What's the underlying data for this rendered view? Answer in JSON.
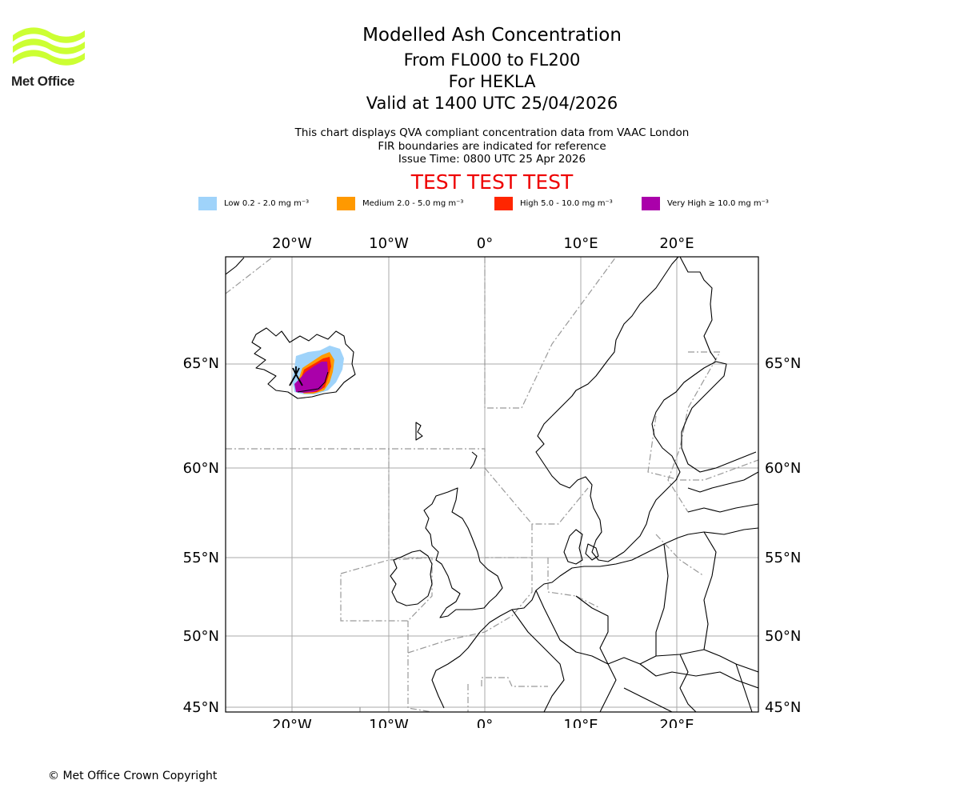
{
  "logo": {
    "name": "Met Office",
    "color": "#ccff33"
  },
  "title": {
    "main": "Modelled Ash Concentration",
    "levels": "From FL000 to FL200",
    "volcano": "For HEKLA",
    "valid": "Valid at 1400 UTC 25/04/2026"
  },
  "info": {
    "line1": "This chart displays QVA compliant concentration data from VAAC London",
    "line2": "FIR boundaries are indicated for reference",
    "line3": "Issue Time: 0800 UTC 25 Apr 2026"
  },
  "test_banner": "TEST TEST TEST",
  "legend": [
    {
      "label": "Low 0.2 - 2.0 mg m⁻³",
      "color": "#9fd3fa"
    },
    {
      "label": "Medium 2.0 - 5.0 mg m⁻³",
      "color": "#ff9900"
    },
    {
      "label": "High 5.0 - 10.0 mg m⁻³",
      "color": "#ff2600"
    },
    {
      "label": "Very High  ≥  10.0 mg m⁻³",
      "color": "#aa00aa"
    }
  ],
  "map": {
    "lon_ticks": [
      "20°W",
      "10°W",
      "0°",
      "10°E",
      "20°E"
    ],
    "lat_ticks": [
      "65°N",
      "60°N",
      "55°N",
      "50°N",
      "45°N"
    ],
    "lon_range": [
      -27,
      28.5
    ],
    "lat_range": [
      45,
      69.5
    ]
  },
  "copyright": "© Met Office Crown Copyright"
}
